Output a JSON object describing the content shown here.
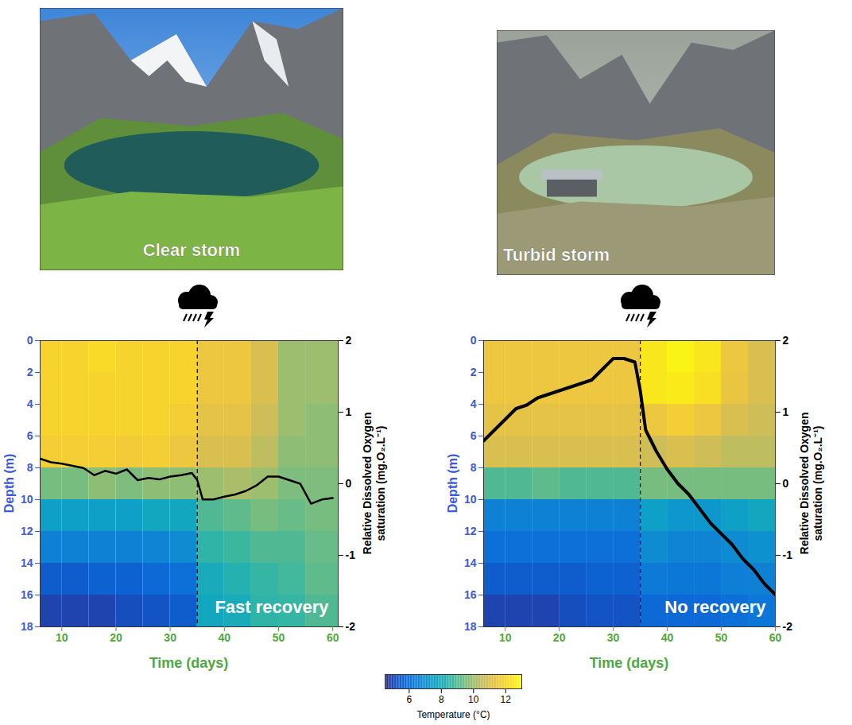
{
  "chart_data": [
    {
      "type": "heatmap",
      "photo_label": "Clear storm",
      "annotation": "Fast recovery",
      "xlabel": "Time (days)",
      "ylabel": "Depth (m)",
      "y2label": "Relative Dissolved Oxygen saturation (mg.O₂.L⁻¹)",
      "xlim": [
        6,
        61
      ],
      "xticks": [
        10,
        20,
        30,
        40,
        50,
        60
      ],
      "ylim": [
        0,
        18
      ],
      "yticks": [
        0,
        2,
        4,
        6,
        8,
        10,
        12,
        14,
        16,
        18
      ],
      "y2lim": [
        -2,
        2
      ],
      "y2ticks": [
        -2,
        -1,
        0,
        1,
        2
      ],
      "storm_day": 35,
      "time_bins": [
        6,
        10,
        15,
        20,
        25,
        30,
        35,
        40,
        45,
        50,
        55,
        61
      ],
      "depth_bins": [
        0,
        2,
        4,
        6,
        8,
        10,
        12,
        14,
        16,
        18
      ],
      "temperature": [
        [
          12,
          12,
          12.2,
          12,
          12,
          12,
          11.5,
          11.5,
          11,
          10,
          10
        ],
        [
          12,
          12,
          12,
          12,
          12,
          12,
          11.5,
          11.5,
          11,
          10,
          10
        ],
        [
          12,
          12,
          12,
          12,
          12,
          11.8,
          11.3,
          11.3,
          10.8,
          10,
          9.8
        ],
        [
          11.8,
          11.8,
          11.8,
          11.7,
          11.8,
          11.5,
          11,
          11,
          10.5,
          9.8,
          9.8
        ],
        [
          9.5,
          9.5,
          9.8,
          9.6,
          9.8,
          9.8,
          10,
          10.2,
          10,
          9.6,
          9.6
        ],
        [
          7.5,
          7.5,
          7.5,
          7.5,
          7.8,
          7.8,
          9,
          9.2,
          9.5,
          9.3,
          9.5
        ],
        [
          6.5,
          6.5,
          6.5,
          6.5,
          6.6,
          6.8,
          8.5,
          8.7,
          9,
          9,
          9.3
        ],
        [
          5.5,
          5.5,
          5.6,
          5.6,
          5.8,
          6,
          8,
          8.3,
          8.6,
          8.8,
          9.2
        ],
        [
          5,
          5,
          5,
          5.2,
          5.3,
          5.5,
          7.8,
          8,
          8.5,
          8.6,
          9
        ]
      ],
      "series": [
        {
          "axis": "y2",
          "color": "#000000",
          "x": [
            6,
            8,
            10,
            12,
            14,
            16,
            18,
            20,
            22,
            24,
            26,
            28,
            30,
            32,
            34,
            35,
            36,
            38,
            40,
            42,
            44,
            46,
            48,
            50,
            52,
            54,
            56,
            58,
            60
          ],
          "values": [
            0.35,
            0.3,
            0.28,
            0.25,
            0.22,
            0.12,
            0.18,
            0.14,
            0.2,
            0.05,
            0.08,
            0.06,
            0.1,
            0.12,
            0.15,
            0.05,
            -0.22,
            -0.22,
            -0.18,
            -0.15,
            -0.1,
            -0.02,
            0.1,
            0.1,
            0.05,
            0.0,
            -0.28,
            -0.22,
            -0.2
          ]
        }
      ]
    },
    {
      "type": "heatmap",
      "photo_label": "Turbid storm",
      "annotation": "No recovery",
      "xlabel": "Time (days)",
      "ylabel": "Depth (m)",
      "y2label": "Relative Dissolved Oxygen saturation (mg.O₂.L⁻¹)",
      "xlim": [
        6,
        60
      ],
      "xticks": [
        10,
        20,
        30,
        40,
        50,
        60
      ],
      "ylim": [
        0,
        18
      ],
      "yticks": [
        0,
        2,
        4,
        6,
        8,
        10,
        12,
        14,
        16,
        18
      ],
      "y2lim": [
        -2,
        2
      ],
      "y2ticks": [
        -2,
        -1,
        0,
        1,
        2
      ],
      "storm_day": 35,
      "time_bins": [
        6,
        10,
        15,
        20,
        25,
        30,
        35,
        40,
        45,
        50,
        55,
        60
      ],
      "depth_bins": [
        0,
        2,
        4,
        6,
        8,
        10,
        12,
        14,
        16,
        18
      ],
      "temperature": [
        [
          11.5,
          11.5,
          11.5,
          11.5,
          11.5,
          11.5,
          12.5,
          12.8,
          12.5,
          11.5,
          11
        ],
        [
          11.5,
          11.5,
          11.5,
          11.5,
          11.5,
          11.5,
          12.5,
          12.6,
          12.3,
          11.4,
          11
        ],
        [
          11.3,
          11.3,
          11.3,
          11.3,
          11.3,
          11.3,
          11.5,
          11.8,
          11.5,
          11,
          10.8
        ],
        [
          11,
          11,
          11,
          11,
          11,
          11,
          10.8,
          11,
          10.8,
          10.5,
          10.5
        ],
        [
          9,
          9,
          9.2,
          9,
          9,
          9,
          9.5,
          9.5,
          9.5,
          9.5,
          9.5
        ],
        [
          6.5,
          6.5,
          6.5,
          6.5,
          6.5,
          6.5,
          7.5,
          7.2,
          7.2,
          7.5,
          7.8
        ],
        [
          6,
          6,
          6,
          6,
          6,
          6,
          6.8,
          6.6,
          6.6,
          6.8,
          7
        ],
        [
          5.5,
          5.5,
          5.5,
          5.5,
          5.6,
          5.6,
          6.3,
          6.2,
          6.2,
          6.4,
          6.5
        ],
        [
          5,
          5,
          5,
          5.2,
          5.3,
          5.3,
          5.8,
          5.8,
          5.8,
          6,
          6.2
        ]
      ],
      "series": [
        {
          "axis": "y2",
          "color": "#000000",
          "x": [
            6,
            8,
            10,
            12,
            14,
            16,
            18,
            20,
            22,
            24,
            26,
            28,
            30,
            32,
            34,
            35,
            36,
            38,
            40,
            42,
            44,
            46,
            48,
            50,
            52,
            54,
            56,
            58,
            60
          ],
          "values": [
            0.6,
            0.75,
            0.9,
            1.05,
            1.1,
            1.2,
            1.25,
            1.3,
            1.35,
            1.4,
            1.45,
            1.6,
            1.75,
            1.75,
            1.7,
            1.3,
            0.75,
            0.45,
            0.2,
            0.0,
            -0.15,
            -0.35,
            -0.55,
            -0.7,
            -0.85,
            -1.05,
            -1.2,
            -1.4,
            -1.55
          ]
        }
      ]
    }
  ],
  "colorbar": {
    "label": "Temperature (°C)",
    "range": [
      4.5,
      13
    ],
    "ticks": [
      6,
      8,
      10,
      12
    ]
  }
}
